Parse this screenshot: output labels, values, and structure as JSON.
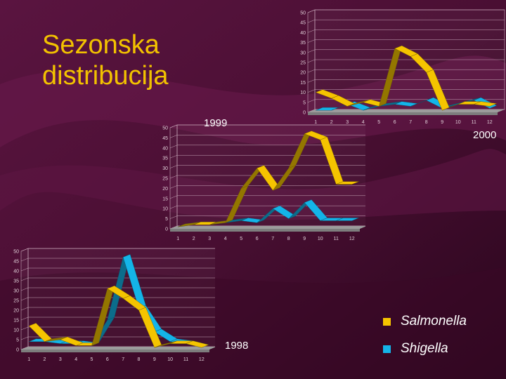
{
  "slide": {
    "title_line1": "Sezonska",
    "title_line2": "distribucija"
  },
  "colors": {
    "background": "#4a0f33",
    "title": "#f2c200",
    "salmonella": "#f5c400",
    "shigella": "#14b4e8",
    "floor": "#9c9c9c",
    "axis_text": "#e0d0d8"
  },
  "legend": [
    {
      "name": "Salmonella",
      "color": "#f5c400"
    },
    {
      "name": "Shigella",
      "color": "#14b4e8"
    }
  ],
  "chart_data": [
    {
      "type": "line",
      "title": "2000",
      "categories": [
        "1",
        "2",
        "3",
        "4",
        "5",
        "6",
        "7",
        "8",
        "9",
        "10",
        "11",
        "12"
      ],
      "ylim": [
        0,
        50
      ],
      "yticks": [
        "0",
        "5",
        "10",
        "15",
        "20",
        "25",
        "30",
        "35",
        "40",
        "45",
        "50"
      ],
      "series": [
        {
          "name": "Salmonella",
          "values": [
            10,
            7,
            3,
            5,
            3,
            32,
            28,
            20,
            1,
            4,
            4,
            3
          ]
        },
        {
          "name": "Shigella",
          "values": [
            1,
            1,
            4,
            1,
            3,
            4,
            3,
            6,
            2,
            4,
            6,
            2
          ]
        }
      ]
    },
    {
      "type": "line",
      "title": "1999",
      "categories": [
        "1",
        "2",
        "3",
        "4",
        "5",
        "6",
        "7",
        "8",
        "9",
        "10",
        "11",
        "12"
      ],
      "ylim": [
        0,
        50
      ],
      "yticks": [
        "0",
        "5",
        "10",
        "15",
        "20",
        "25",
        "30",
        "35",
        "40",
        "45",
        "50"
      ],
      "series": [
        {
          "name": "Salmonella",
          "values": [
            1,
            2,
            2,
            3,
            20,
            30,
            19,
            30,
            47,
            44,
            22,
            22
          ]
        },
        {
          "name": "Shigella",
          "values": [
            1,
            2,
            2,
            3,
            4,
            3,
            10,
            5,
            13,
            4,
            4,
            4
          ]
        }
      ]
    },
    {
      "type": "line",
      "title": "1998",
      "categories": [
        "1",
        "2",
        "3",
        "4",
        "5",
        "6",
        "7",
        "8",
        "9",
        "10",
        "11",
        "12"
      ],
      "ylim": [
        0,
        50
      ],
      "yticks": [
        "0",
        "5",
        "10",
        "15",
        "20",
        "25",
        "30",
        "35",
        "40",
        "45",
        "50"
      ],
      "series": [
        {
          "name": "Salmonella",
          "values": [
            12,
            4,
            5,
            2,
            2,
            31,
            26,
            20,
            1,
            3,
            3,
            1
          ]
        },
        {
          "name": "Shigella",
          "values": [
            4,
            4,
            3,
            3,
            2,
            15,
            47,
            21,
            9,
            4,
            3,
            1
          ]
        }
      ]
    }
  ]
}
